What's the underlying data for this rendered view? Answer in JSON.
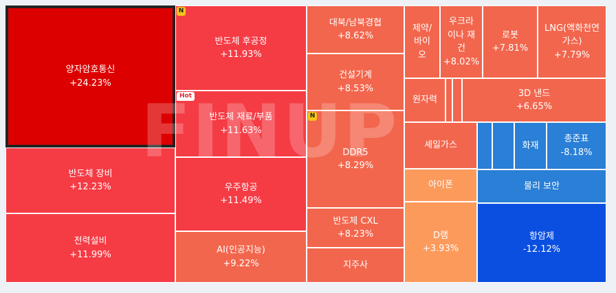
{
  "watermark": "FINUP",
  "chart_data": {
    "type": "treemap",
    "items": [
      {
        "name": "양자암호통신",
        "change": "+24.23%",
        "color": "#dd0000",
        "selected": true
      },
      {
        "name": "반도체 장비",
        "change": "+12.23%",
        "color": "#f53b44"
      },
      {
        "name": "전력설비",
        "change": "+11.99%",
        "color": "#f53b44"
      },
      {
        "name": "반도체 후공정",
        "change": "+11.93%",
        "color": "#f53b44",
        "badge": "N"
      },
      {
        "name": "반도체 재료/부품",
        "change": "+11.63%",
        "color": "#f53b44",
        "badge": "Hot"
      },
      {
        "name": "우주항공",
        "change": "+11.49%",
        "color": "#f53b44"
      },
      {
        "name": "AI(인공지능)",
        "change": "+9.22%",
        "color": "#f2664d"
      },
      {
        "name": "대북/남북경협",
        "change": "+8.62%",
        "color": "#f2664d"
      },
      {
        "name": "건설기계",
        "change": "+8.53%",
        "color": "#f2664d"
      },
      {
        "name": "DDR5",
        "change": "+8.29%",
        "color": "#f2664d",
        "badge": "N"
      },
      {
        "name": "반도체 CXL",
        "change": "+8.23%",
        "color": "#f2664d"
      },
      {
        "name": "지주사",
        "change": "",
        "color": "#f2664d"
      },
      {
        "name": "제약/\n바이\n오",
        "change": "",
        "color": "#f2664d"
      },
      {
        "name": "우크라\n이나 재\n건",
        "change": "+8.02%",
        "color": "#f2664d"
      },
      {
        "name": "로봇",
        "change": "+7.81%",
        "color": "#f2664d"
      },
      {
        "name": "LNG(액화천연\n가스)",
        "change": "+7.79%",
        "color": "#f2664d"
      },
      {
        "name": "원자력",
        "change": "",
        "color": "#f2664d"
      },
      {
        "name": "",
        "change": "",
        "color": "#f2664d"
      },
      {
        "name": "",
        "change": "",
        "color": "#f2664d"
      },
      {
        "name": "3D 낸드",
        "change": "+6.65%",
        "color": "#f2664d"
      },
      {
        "name": "셰일가스",
        "change": "",
        "color": "#f2664d"
      },
      {
        "name": "아이폰",
        "change": "",
        "color": "#fc9a5c"
      },
      {
        "name": "D램",
        "change": "+3.93%",
        "color": "#fc9a5c"
      },
      {
        "name": "",
        "change": "",
        "color": "#2a7fd6"
      },
      {
        "name": "",
        "change": "",
        "color": "#2a7fd6"
      },
      {
        "name": "화재",
        "change": "",
        "color": "#2a7fd6"
      },
      {
        "name": "총준표",
        "change": "-8.18%",
        "color": "#2a7fd6"
      },
      {
        "name": "물리 보안",
        "change": "",
        "color": "#2a7fd6"
      },
      {
        "name": "항암제",
        "change": "-12.12%",
        "color": "#0a4fe0"
      }
    ]
  }
}
